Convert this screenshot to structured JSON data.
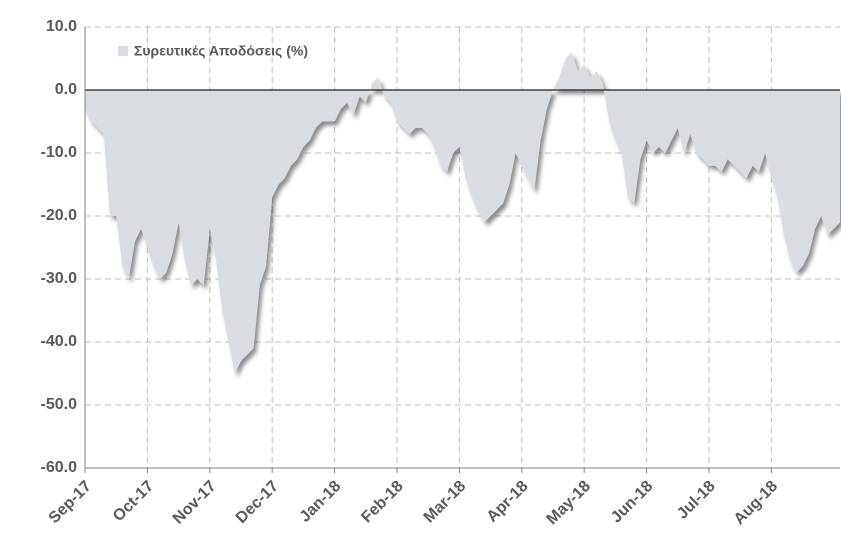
{
  "chart_data": {
    "type": "area",
    "legend": "Συρευτικές Αποδόσεις (%)",
    "color": "#d9dce1",
    "categories": [
      "Sep-17",
      null,
      null,
      null,
      null,
      null,
      null,
      null,
      null,
      null,
      "Oct-17",
      null,
      null,
      null,
      null,
      null,
      null,
      null,
      null,
      null,
      "Nov-17",
      null,
      null,
      null,
      null,
      null,
      null,
      null,
      null,
      null,
      "Dec-17",
      null,
      null,
      null,
      null,
      null,
      null,
      null,
      null,
      null,
      "Jan-18",
      null,
      null,
      null,
      null,
      null,
      null,
      null,
      null,
      null,
      "Feb-18",
      null,
      null,
      null,
      null,
      null,
      null,
      null,
      null,
      null,
      "Mar-18",
      null,
      null,
      null,
      null,
      null,
      null,
      null,
      null,
      null,
      "Apr-18",
      null,
      null,
      null,
      null,
      null,
      null,
      null,
      null,
      null,
      "May-18",
      null,
      null,
      null,
      null,
      null,
      null,
      null,
      null,
      null,
      "Jun-18",
      null,
      null,
      null,
      null,
      null,
      null,
      null,
      null,
      null,
      "Jul-18",
      null,
      null,
      null,
      null,
      null,
      null,
      null,
      null,
      null,
      "Aug-18",
      null,
      null,
      null,
      null,
      null,
      null,
      null,
      null,
      null,
      null,
      null
    ],
    "values": [
      -3,
      -5,
      -6,
      -7,
      -20,
      -20,
      -28,
      -30,
      -24,
      -22,
      -25,
      -28,
      -30,
      -29,
      -26,
      -21,
      -27,
      -31,
      -30,
      -31,
      -22,
      -27,
      -35,
      -40,
      -45,
      -43,
      -42,
      -41,
      -31,
      -28,
      -17,
      -15,
      -14,
      -12,
      -11,
      -9,
      -8,
      -6,
      -5,
      -5,
      -5,
      -3,
      -2,
      -4,
      -1,
      -2,
      1,
      2,
      -1,
      -2,
      -5,
      -6,
      -7,
      -6,
      -6,
      -7,
      -9,
      -12,
      -13,
      -10,
      -9,
      -14,
      -17,
      -19,
      -21,
      -20,
      -19,
      -18,
      -15,
      -10,
      -12,
      -14,
      -16,
      -8,
      -3,
      0,
      2,
      5,
      6,
      3,
      4,
      2,
      3,
      1,
      -5,
      -8,
      -10,
      -17,
      -18,
      -11,
      -8,
      -10,
      -9,
      -10,
      -8,
      -6,
      -10,
      -7,
      -10,
      -11,
      -12,
      -12,
      -13,
      -11,
      -12,
      -13,
      -14,
      -12,
      -13,
      -10,
      -14,
      -17,
      -23,
      -27,
      -29,
      -28,
      -26,
      -22,
      -20,
      -23,
      -22,
      -21
    ],
    "ylim": [
      -60,
      10
    ],
    "yticks": [
      {
        "value": -60,
        "label": "-60.0"
      },
      {
        "value": -50,
        "label": "-50.0"
      },
      {
        "value": -40,
        "label": "-40.0"
      },
      {
        "value": -30,
        "label": "-30.0"
      },
      {
        "value": -20,
        "label": "-20.0"
      },
      {
        "value": -10,
        "label": "-10.0"
      },
      {
        "value": 0,
        "label": "0.0"
      },
      {
        "value": 10,
        "label": "10.0"
      }
    ],
    "grid": true
  }
}
